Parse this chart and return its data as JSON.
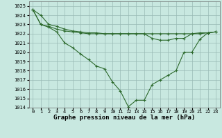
{
  "title": "Graphe pression niveau de la mer (hPa)",
  "hours": [
    0,
    1,
    2,
    3,
    4,
    5,
    6,
    7,
    8,
    9,
    10,
    11,
    12,
    13,
    14,
    15,
    16,
    17,
    18,
    19,
    20,
    21,
    22,
    23
  ],
  "line1": [
    1024.6,
    1024.0,
    1023.0,
    1022.8,
    1022.5,
    1022.3,
    1022.2,
    1022.1,
    1022.1,
    1022.0,
    1022.0,
    1022.0,
    1022.0,
    1022.0,
    1022.0,
    1022.0,
    1022.0,
    1022.0,
    1022.0,
    1022.0,
    1022.0,
    1022.0,
    1022.1,
    1022.2
  ],
  "line2": [
    1024.6,
    1023.0,
    1022.8,
    1022.5,
    1022.3,
    1022.2,
    1022.1,
    1022.0,
    1022.0,
    1022.0,
    1022.0,
    1022.0,
    1022.0,
    1022.0,
    1022.0,
    1021.5,
    1021.3,
    1021.3,
    1021.5,
    1021.5,
    1022.0,
    1022.1,
    1022.1,
    1022.2
  ],
  "line3": [
    1024.6,
    1023.0,
    1022.7,
    1022.2,
    1021.0,
    1020.5,
    1019.8,
    1019.2,
    1018.5,
    1018.2,
    1016.8,
    1015.8,
    1014.1,
    1014.8,
    1014.8,
    1016.5,
    1017.0,
    1017.5,
    1018.0,
    1020.0,
    1020.0,
    1021.4,
    1022.1,
    1022.2
  ],
  "line_color": "#2d6a2d",
  "bg_color": "#c8e8e0",
  "grid_color": "#99bbb5",
  "ylim": [
    1014,
    1025.5
  ],
  "yticks": [
    1014,
    1015,
    1016,
    1017,
    1018,
    1019,
    1020,
    1021,
    1022,
    1023,
    1024,
    1025
  ],
  "marker": "+",
  "marker_size": 3.5,
  "linewidth": 0.8,
  "title_fontsize": 6.5,
  "tick_fontsize": 5.0
}
